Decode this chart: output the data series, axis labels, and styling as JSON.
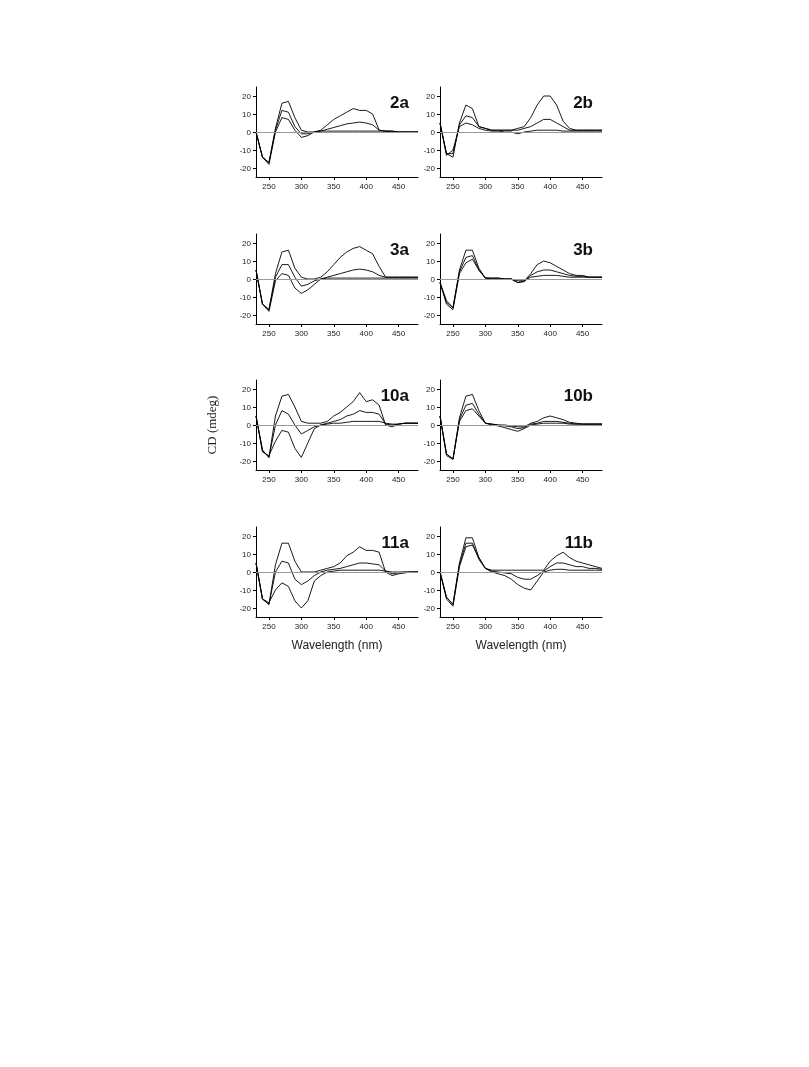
{
  "chart_data": [
    {
      "type": "line",
      "title": "2a",
      "x": [
        230,
        240,
        250,
        260,
        270,
        280,
        290,
        300,
        310,
        320,
        330,
        340,
        350,
        360,
        370,
        380,
        390,
        400,
        410,
        420,
        430,
        440,
        450,
        460,
        470,
        480
      ],
      "xlim": [
        230,
        480
      ],
      "xticks": [
        250,
        300,
        350,
        400,
        450
      ],
      "ylim": [
        -25,
        25
      ],
      "yticks": [
        -20,
        -10,
        0,
        10,
        20
      ],
      "ref_lines": [
        {
          "axis": "y",
          "value": 0,
          "color": "#999999"
        }
      ],
      "series": [
        {
          "color": "#000000",
          "values": [
            0,
            -14,
            -17,
            2,
            16,
            17,
            8,
            1,
            0,
            0,
            1,
            4,
            7,
            9,
            11,
            13,
            12,
            12,
            10,
            1,
            0.5,
            0.5,
            0,
            0,
            0,
            0
          ]
        },
        {
          "color": "#000000",
          "values": [
            0,
            -14,
            -17,
            1,
            12,
            11,
            3,
            -1,
            -1,
            0,
            0.5,
            1.5,
            2.5,
            3.5,
            4.5,
            5,
            5.5,
            5,
            4,
            1,
            0.5,
            0.5,
            0,
            0,
            0,
            0
          ]
        },
        {
          "color": "#000000",
          "values": [
            0,
            -14,
            -18,
            0,
            8,
            7,
            1,
            -3,
            -2,
            0,
            0.5,
            0.5,
            0.5,
            0.5,
            0.5,
            0.5,
            0.5,
            0.5,
            0.5,
            0.5,
            0.5,
            0,
            0,
            0,
            0,
            0
          ]
        }
      ]
    },
    {
      "type": "line",
      "title": "2b",
      "x": [
        230,
        240,
        250,
        260,
        270,
        280,
        290,
        300,
        310,
        320,
        330,
        340,
        350,
        360,
        370,
        380,
        390,
        400,
        410,
        420,
        430,
        440,
        450,
        460,
        470,
        480
      ],
      "xlim": [
        230,
        480
      ],
      "xticks": [
        250,
        300,
        350,
        400,
        450
      ],
      "ylim": [
        -25,
        25
      ],
      "yticks": [
        -20,
        -10,
        0,
        10,
        20
      ],
      "ref_lines": [
        {
          "axis": "y",
          "value": 0,
          "color": "#999999"
        }
      ],
      "series": [
        {
          "color": "#000000",
          "values": [
            5,
            -12,
            -14,
            5,
            15,
            13,
            3,
            2,
            1,
            1,
            1,
            1,
            2,
            3,
            8,
            15,
            20,
            20,
            15,
            6,
            2,
            1,
            1,
            1,
            1,
            1
          ]
        },
        {
          "color": "#000000",
          "values": [
            5,
            -12,
            -12,
            4,
            9,
            8,
            3,
            2,
            1,
            1,
            1,
            1,
            1,
            2,
            3,
            5,
            7,
            7,
            5,
            3,
            1,
            1,
            1,
            1,
            1,
            1
          ]
        },
        {
          "color": "#000000",
          "values": [
            5,
            -13,
            -10,
            3,
            5,
            4,
            2,
            1,
            0.5,
            0.5,
            0,
            0,
            -1,
            0,
            0.5,
            1,
            1,
            1,
            1,
            0.5,
            0.5,
            0.5,
            0.5,
            0.5,
            0.5,
            0.5
          ]
        }
      ]
    },
    {
      "type": "line",
      "title": "3a",
      "x": [
        230,
        240,
        250,
        260,
        270,
        280,
        290,
        300,
        310,
        320,
        330,
        340,
        350,
        360,
        370,
        380,
        390,
        400,
        410,
        420,
        430,
        440,
        450,
        460,
        470,
        480
      ],
      "xlim": [
        230,
        480
      ],
      "xticks": [
        250,
        300,
        350,
        400,
        450
      ],
      "ylim": [
        -25,
        25
      ],
      "yticks": [
        -20,
        -10,
        0,
        10,
        20
      ],
      "ref_lines": [
        {
          "axis": "y",
          "value": 0,
          "color": "#999999"
        }
      ],
      "series": [
        {
          "color": "#000000",
          "values": [
            5,
            -14,
            -17,
            3,
            15,
            16,
            6,
            1,
            0,
            0,
            1,
            4,
            8,
            12,
            15,
            17,
            18,
            16,
            14,
            7,
            1,
            1,
            1,
            1,
            1,
            1
          ]
        },
        {
          "color": "#000000",
          "values": [
            5,
            -14,
            -17,
            1,
            8,
            8,
            1,
            -4,
            -3,
            -1,
            0,
            1,
            2,
            3,
            4,
            5,
            5.5,
            5,
            4,
            2,
            1,
            1,
            1,
            1,
            1,
            1
          ]
        },
        {
          "color": "#000000",
          "values": [
            5,
            -14,
            -18,
            -1,
            3,
            2,
            -5,
            -8,
            -6,
            -3,
            0,
            0.5,
            0.5,
            0.5,
            0.5,
            0.5,
            0.5,
            0.5,
            0.5,
            0.5,
            0.5,
            0.5,
            0.5,
            0.5,
            0.5,
            0.5
          ]
        }
      ]
    },
    {
      "type": "line",
      "title": "3b",
      "x": [
        230,
        240,
        250,
        260,
        270,
        280,
        290,
        300,
        310,
        320,
        330,
        340,
        350,
        360,
        370,
        380,
        390,
        400,
        410,
        420,
        430,
        440,
        450,
        460,
        470,
        480
      ],
      "xlim": [
        230,
        480
      ],
      "xticks": [
        250,
        300,
        350,
        400,
        450
      ],
      "ylim": [
        -25,
        25
      ],
      "yticks": [
        -20,
        -10,
        0,
        10,
        20
      ],
      "ref_lines": [
        {
          "axis": "y",
          "value": 0,
          "color": "#999999"
        }
      ],
      "series": [
        {
          "color": "#000000",
          "values": [
            -2,
            -12,
            -16,
            5,
            16,
            16,
            6,
            0.5,
            0.5,
            0.5,
            0,
            0,
            -1,
            -1,
            3,
            8,
            10,
            9,
            7,
            5,
            3,
            2,
            2,
            1,
            1,
            1
          ]
        },
        {
          "color": "#000000",
          "values": [
            -2,
            -13,
            -16,
            4,
            12,
            13,
            5,
            0.5,
            0.5,
            0.5,
            0,
            0,
            -2,
            -1.5,
            2,
            4,
            5,
            5,
            4,
            3,
            2,
            1.5,
            1.5,
            1,
            1,
            1
          ]
        },
        {
          "color": "#000000",
          "values": [
            -2,
            -14,
            -17,
            3,
            9,
            11,
            5,
            0.5,
            0,
            0,
            0,
            0,
            -2,
            -1,
            1,
            1.5,
            2,
            2,
            2,
            1.5,
            1,
            1,
            1,
            1,
            1,
            1
          ]
        }
      ]
    },
    {
      "type": "line",
      "title": "10a",
      "ylabel": "CD (mdeg)",
      "x": [
        230,
        240,
        250,
        260,
        270,
        280,
        290,
        300,
        310,
        320,
        330,
        340,
        350,
        360,
        370,
        380,
        390,
        400,
        410,
        420,
        430,
        440,
        450,
        460,
        470,
        480
      ],
      "xlim": [
        230,
        480
      ],
      "xticks": [
        250,
        300,
        350,
        400,
        450
      ],
      "ylim": [
        -25,
        25
      ],
      "yticks": [
        -20,
        -10,
        0,
        10,
        20
      ],
      "ref_lines": [
        {
          "axis": "y",
          "value": 0,
          "color": "#999999"
        }
      ],
      "series": [
        {
          "color": "#000000",
          "values": [
            5,
            -14,
            -18,
            5,
            16,
            17,
            10,
            2,
            1,
            1,
            1,
            2,
            5,
            7,
            10,
            13,
            18,
            13,
            14,
            11,
            0,
            -1,
            0.5,
            1,
            1,
            1
          ]
        },
        {
          "color": "#000000",
          "values": [
            5,
            -14,
            -18,
            0,
            8,
            6,
            0,
            -5,
            -3,
            -1,
            0,
            1,
            2,
            3,
            5,
            6,
            8,
            7,
            7,
            6,
            0.5,
            0,
            0.5,
            1,
            1,
            1
          ]
        },
        {
          "color": "#000000",
          "values": [
            5,
            -15,
            -17,
            -9,
            -3,
            -4,
            -13,
            -18,
            -10,
            -2,
            0,
            0.5,
            1,
            1,
            1.5,
            2,
            2,
            2,
            2,
            2,
            1,
            0.5,
            0.5,
            1,
            1,
            1
          ]
        }
      ]
    },
    {
      "type": "line",
      "title": "10b",
      "x": [
        230,
        240,
        250,
        260,
        270,
        280,
        290,
        300,
        310,
        320,
        330,
        340,
        350,
        360,
        370,
        380,
        390,
        400,
        410,
        420,
        430,
        440,
        450,
        460,
        470,
        480
      ],
      "xlim": [
        230,
        480
      ],
      "xticks": [
        250,
        300,
        350,
        400,
        450
      ],
      "ylim": [
        -25,
        25
      ],
      "yticks": [
        -20,
        -10,
        0,
        10,
        20
      ],
      "ref_lines": [
        {
          "axis": "y",
          "value": 0,
          "color": "#999999"
        }
      ],
      "series": [
        {
          "color": "#000000",
          "values": [
            5,
            -16,
            -19,
            4,
            16,
            17,
            8,
            1,
            0.5,
            0,
            0,
            -0.5,
            -1,
            -1,
            1,
            2,
            4,
            5,
            4,
            3,
            1.5,
            1,
            0.5,
            0.5,
            0.5,
            0.5
          ]
        },
        {
          "color": "#000000",
          "values": [
            5,
            -16,
            -19,
            3,
            11,
            12,
            6,
            1,
            0.5,
            0,
            -0.5,
            -1,
            -2,
            -1.5,
            0.5,
            1,
            2,
            2,
            2,
            1.5,
            1,
            0.5,
            0.5,
            0.5,
            0.5,
            0.5
          ]
        },
        {
          "color": "#000000",
          "values": [
            5,
            -17,
            -19,
            2,
            8,
            9,
            5,
            1,
            0,
            -0.5,
            -1.5,
            -2.5,
            -3.5,
            -2,
            0,
            0.5,
            1,
            1,
            1,
            1,
            0.5,
            0.5,
            0.5,
            0.5,
            0.5,
            0.5
          ]
        }
      ]
    },
    {
      "type": "line",
      "title": "11a",
      "xlabel": "Wavelength (nm)",
      "x": [
        230,
        240,
        250,
        260,
        270,
        280,
        290,
        300,
        310,
        320,
        330,
        340,
        350,
        360,
        370,
        380,
        390,
        400,
        410,
        420,
        430,
        440,
        450,
        460,
        470,
        480
      ],
      "xlim": [
        230,
        480
      ],
      "xticks": [
        250,
        300,
        350,
        400,
        450
      ],
      "ylim": [
        -25,
        25
      ],
      "yticks": [
        -20,
        -10,
        0,
        10,
        20
      ],
      "ref_lines": [
        {
          "axis": "y",
          "value": 0,
          "color": "#999999"
        }
      ],
      "series": [
        {
          "color": "#000000",
          "values": [
            5,
            -15,
            -18,
            4,
            16,
            16,
            6,
            0,
            0,
            0,
            1,
            2,
            3,
            5,
            9,
            11,
            14,
            12,
            12,
            11,
            0,
            -2,
            -1,
            -0.5,
            0,
            0
          ]
        },
        {
          "color": "#000000",
          "values": [
            5,
            -15,
            -18,
            0,
            6,
            5,
            -4,
            -7,
            -5,
            -2,
            0,
            1,
            1.5,
            2,
            3,
            4,
            5,
            5,
            4.5,
            4,
            0.5,
            -1,
            -0.5,
            0,
            0,
            0
          ]
        },
        {
          "color": "#000000",
          "values": [
            5,
            -15,
            -17,
            -10,
            -6,
            -8,
            -16,
            -20,
            -16,
            -5,
            -2,
            0,
            0.5,
            1,
            1,
            1,
            1,
            1,
            1,
            1,
            0.5,
            0,
            0,
            0,
            0,
            0
          ]
        }
      ]
    },
    {
      "type": "line",
      "title": "11b",
      "xlabel": "Wavelength (nm)",
      "x": [
        230,
        240,
        250,
        260,
        270,
        280,
        290,
        300,
        310,
        320,
        330,
        340,
        350,
        360,
        370,
        380,
        390,
        400,
        410,
        420,
        430,
        440,
        450,
        460,
        470,
        480
      ],
      "xlim": [
        230,
        480
      ],
      "xticks": [
        250,
        300,
        350,
        400,
        450
      ],
      "ylim": [
        -25,
        25
      ],
      "yticks": [
        -20,
        -10,
        0,
        10,
        20
      ],
      "ref_lines": [
        {
          "axis": "y",
          "value": 0,
          "color": "#999999"
        }
      ],
      "series": [
        {
          "color": "#000000",
          "values": [
            0,
            -14,
            -18,
            5,
            19,
            19,
            8,
            2,
            1,
            1,
            1,
            1,
            1,
            1,
            1,
            1,
            1,
            6,
            9,
            11,
            8,
            6,
            5,
            4,
            3,
            2
          ]
        },
        {
          "color": "#000000",
          "values": [
            0,
            -14,
            -18,
            4,
            16,
            16,
            7,
            2,
            0.5,
            0,
            -0.5,
            -1,
            -3,
            -4,
            -4,
            -2,
            0.5,
            3,
            5,
            5,
            4,
            3,
            3,
            2,
            2,
            1.5
          ]
        },
        {
          "color": "#000000",
          "values": [
            0,
            -15,
            -19,
            3,
            14,
            15,
            8,
            2,
            0,
            -1,
            -2,
            -4,
            -7,
            -9,
            -10,
            -5,
            0,
            1,
            1.5,
            1.5,
            1,
            1,
            1,
            1,
            1,
            1
          ]
        }
      ]
    }
  ]
}
